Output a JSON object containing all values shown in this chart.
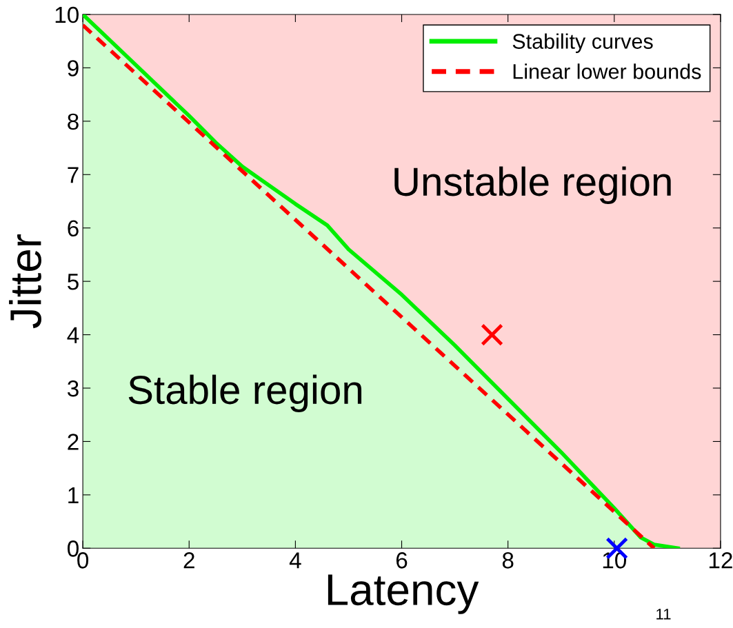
{
  "chart_data": {
    "type": "area",
    "xlabel": "Latency",
    "ylabel": "Jitter",
    "xlim": [
      0,
      12
    ],
    "ylim": [
      0,
      10
    ],
    "xticks": [
      0,
      2,
      4,
      6,
      8,
      10,
      12
    ],
    "yticks": [
      0,
      1,
      2,
      3,
      4,
      5,
      6,
      7,
      8,
      9,
      10
    ],
    "grid": false,
    "legend": "top right",
    "bands": [
      {
        "axis": "y",
        "from": 0,
        "to": 10,
        "color": "#ffd5d5"
      }
    ],
    "series": [
      {
        "name": "Stability curves",
        "color": "#00ee00",
        "line_style": "solid",
        "x": [
          0,
          1,
          2,
          2.5,
          3,
          4,
          4.6,
          5,
          6,
          7,
          8,
          9,
          10,
          10.5,
          10.75,
          11.2
        ],
        "values": [
          10,
          9.05,
          8.1,
          7.6,
          7.15,
          6.45,
          6.05,
          5.6,
          4.75,
          3.8,
          2.8,
          1.8,
          0.75,
          0.2,
          0.07,
          0
        ]
      },
      {
        "name": "Linear lower bounds",
        "type": "line",
        "color": "#ff0000",
        "line_style": "dashed",
        "x": [
          0,
          10.75
        ],
        "values": [
          9.8,
          0
        ]
      },
      {
        "type": "scatter",
        "marker": "cross",
        "color": "#ff0000",
        "x": [
          7.7
        ],
        "values": [
          4
        ]
      },
      {
        "type": "scatter",
        "marker": "cross",
        "color": "#0000ff",
        "x": [
          10.05
        ],
        "values": [
          0
        ]
      }
    ],
    "annotations": [
      "Unstable region",
      "Stable region",
      "11"
    ]
  }
}
